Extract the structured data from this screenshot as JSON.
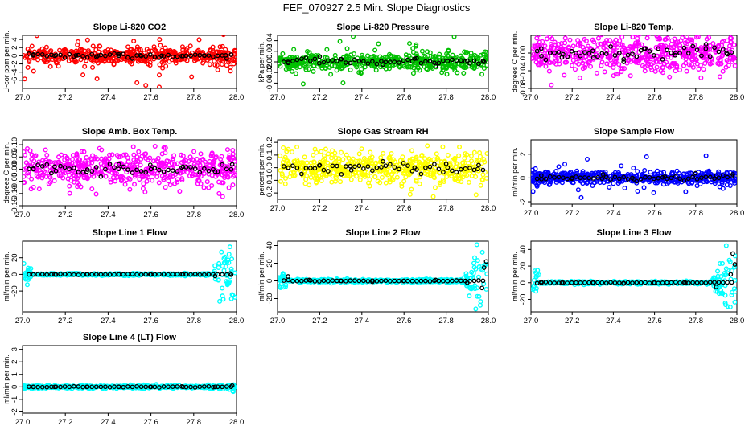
{
  "title": "FEF_070927  2.5 Min. Slope Diagnostics",
  "chart_data": [
    {
      "type": "scatter",
      "title": "Slope Li-820 CO2",
      "ylabel": "Li-cor ppm per min.",
      "xlim": [
        27.0,
        28.0
      ],
      "ylim": [
        -8,
        5
      ],
      "yticks": [
        -6,
        -4,
        -2,
        0,
        2,
        4
      ],
      "xticks": [
        27.0,
        27.2,
        27.4,
        27.6,
        27.8,
        28.0
      ],
      "color": "#ff0000",
      "noise": 1.0,
      "out": 7,
      "edge": 0,
      "seed": 11,
      "summary_points": [
        [
          27.05,
          0.1
        ],
        [
          27.15,
          0.0
        ],
        [
          27.25,
          0.1
        ],
        [
          27.35,
          -0.1
        ],
        [
          27.45,
          0.0
        ],
        [
          27.55,
          0.1
        ],
        [
          27.65,
          0.0
        ],
        [
          27.75,
          -0.1
        ],
        [
          27.85,
          0.0
        ],
        [
          27.95,
          0.1
        ]
      ]
    },
    {
      "type": "scatter",
      "title": "Slope Li-820 Pressure",
      "ylabel": "kPa per min.",
      "xlim": [
        27.0,
        28.0
      ],
      "ylim": [
        -0.05,
        0.05
      ],
      "yticks": [
        -0.04,
        -0.02,
        0.0,
        0.02,
        0.04
      ],
      "xticks": [
        27.0,
        27.2,
        27.4,
        27.6,
        27.8,
        28.0
      ],
      "color": "#00c000",
      "noise": 0.008,
      "out": 0.04,
      "edge": 0,
      "seed": 23,
      "summary_points": [
        [
          27.05,
          0.0
        ],
        [
          27.2,
          0.01
        ],
        [
          27.3,
          0.005
        ],
        [
          27.5,
          -0.005
        ],
        [
          27.65,
          0.006
        ],
        [
          27.75,
          -0.008
        ],
        [
          27.9,
          0.002
        ],
        [
          27.98,
          0.0
        ]
      ]
    },
    {
      "type": "scatter",
      "title": "Slope Li-820 Temp.",
      "ylabel": "degrees C per min.",
      "xlim": [
        27.0,
        28.0
      ],
      "ylim": [
        -0.08,
        0.04
      ],
      "yticks": [
        -0.08,
        -0.04,
        0.0
      ],
      "xticks": [
        27.0,
        27.2,
        27.4,
        27.6,
        27.8,
        28.0
      ],
      "color": "#ff00ff",
      "noise": 0.02,
      "out": 0.05,
      "edge": 0,
      "seed": 37,
      "summary_points": [
        [
          27.05,
          0.01
        ],
        [
          27.15,
          -0.01
        ],
        [
          27.3,
          0.005
        ],
        [
          27.45,
          -0.02
        ],
        [
          27.55,
          0.01
        ],
        [
          27.7,
          -0.005
        ],
        [
          27.85,
          0.02
        ],
        [
          27.95,
          0.0
        ]
      ]
    },
    {
      "type": "scatter",
      "title": "Slope Amb. Box Temp.",
      "ylabel": "degrees C per min.",
      "xlim": [
        27.0,
        28.0
      ],
      "ylim": [
        -0.15,
        0.12
      ],
      "yticks": [
        -0.15,
        -0.1,
        -0.05,
        0.0,
        0.05,
        0.1
      ],
      "xticks": [
        27.0,
        27.2,
        27.4,
        27.6,
        27.8,
        28.0
      ],
      "color": "#ff00ff",
      "noise": 0.035,
      "out": 0.12,
      "edge": 0,
      "seed": 41,
      "summary_points": [
        [
          27.05,
          0.0
        ],
        [
          27.15,
          0.01
        ],
        [
          27.3,
          -0.01
        ],
        [
          27.45,
          0.02
        ],
        [
          27.6,
          0.0
        ],
        [
          27.75,
          0.01
        ],
        [
          27.9,
          -0.01
        ],
        [
          27.98,
          0.02
        ]
      ]
    },
    {
      "type": "scatter",
      "title": "Slope Gas Stream RH",
      "ylabel": "percent per min.",
      "xlim": [
        27.0,
        28.0
      ],
      "ylim": [
        -0.25,
        0.22
      ],
      "yticks": [
        -0.2,
        -0.1,
        0.0,
        0.1,
        0.2
      ],
      "xticks": [
        27.0,
        27.2,
        27.4,
        27.6,
        27.8,
        28.0
      ],
      "color": "#ffff00",
      "noise": 0.06,
      "out": 0.2,
      "edge": 0,
      "seed": 53,
      "summary_points": [
        [
          27.05,
          0.0
        ],
        [
          27.2,
          0.02
        ],
        [
          27.35,
          -0.02
        ],
        [
          27.5,
          0.05
        ],
        [
          27.65,
          0.0
        ],
        [
          27.8,
          0.03
        ],
        [
          27.95,
          -0.01
        ]
      ]
    },
    {
      "type": "scatter",
      "title": "Slope Sample Flow",
      "ylabel": "ml/min per min.",
      "xlim": [
        27.0,
        28.0
      ],
      "ylim": [
        -2.2,
        3.2
      ],
      "yticks": [
        -2,
        0,
        2
      ],
      "xticks": [
        27.0,
        27.2,
        27.4,
        27.6,
        27.8,
        28.0
      ],
      "color": "#0000ff",
      "noise": 0.25,
      "out": 1.8,
      "edge": 0,
      "seed": 67,
      "summary_points": [
        [
          27.05,
          0.2
        ],
        [
          27.2,
          0.0
        ],
        [
          27.35,
          0.3
        ],
        [
          27.5,
          -0.1
        ],
        [
          27.65,
          0.1
        ],
        [
          27.8,
          0.4
        ],
        [
          27.9,
          0.2
        ],
        [
          27.98,
          0.3
        ]
      ]
    },
    {
      "type": "scatter",
      "title": "Slope Line 1 Flow",
      "ylabel": "ml/min per min.",
      "xlim": [
        27.0,
        28.0
      ],
      "ylim": [
        -45,
        40
      ],
      "yticks": [
        -20,
        0,
        20
      ],
      "xticks": [
        27.0,
        27.2,
        27.4,
        27.6,
        27.8,
        28.0
      ],
      "color": "#00ffff",
      "noise": 0.6,
      "out": 0,
      "edge": 30,
      "seed": 71,
      "summary_points": [
        [
          27.05,
          0
        ],
        [
          27.15,
          0
        ],
        [
          27.3,
          0
        ],
        [
          27.45,
          0
        ],
        [
          27.6,
          0
        ],
        [
          27.75,
          0
        ],
        [
          27.9,
          -2
        ],
        [
          27.97,
          1
        ]
      ]
    },
    {
      "type": "scatter",
      "title": "Slope Line 2 Flow",
      "ylabel": "ml/min per min.",
      "xlim": [
        27.0,
        28.0
      ],
      "ylim": [
        -35,
        45
      ],
      "yticks": [
        -20,
        0,
        20,
        40
      ],
      "xticks": [
        27.0,
        27.2,
        27.4,
        27.6,
        27.8,
        28.0
      ],
      "color": "#00ffff",
      "noise": 0.8,
      "out": 0,
      "edge": 30,
      "seed": 83,
      "summary_points": [
        [
          27.05,
          5
        ],
        [
          27.15,
          1
        ],
        [
          27.3,
          0
        ],
        [
          27.45,
          -1
        ],
        [
          27.6,
          0
        ],
        [
          27.75,
          1
        ],
        [
          27.9,
          -2
        ],
        [
          27.98,
          15
        ],
        [
          27.99,
          22
        ],
        [
          27.97,
          -8
        ]
      ]
    },
    {
      "type": "scatter",
      "title": "Slope Line 3 Flow",
      "ylabel": "ml/min per min.",
      "xlim": [
        27.0,
        28.0
      ],
      "ylim": [
        -35,
        50
      ],
      "yticks": [
        -20,
        0,
        20,
        40
      ],
      "xticks": [
        27.0,
        27.2,
        27.4,
        27.6,
        27.8,
        28.0
      ],
      "color": "#00ffff",
      "noise": 0.8,
      "out": 0,
      "edge": 40,
      "seed": 97,
      "summary_points": [
        [
          27.05,
          1
        ],
        [
          27.15,
          0
        ],
        [
          27.3,
          0
        ],
        [
          27.45,
          -1
        ],
        [
          27.6,
          0
        ],
        [
          27.75,
          0
        ],
        [
          27.9,
          -5
        ],
        [
          27.98,
          35
        ],
        [
          27.99,
          22
        ],
        [
          27.97,
          10
        ]
      ]
    },
    {
      "type": "scatter",
      "title": "Slope Line 4 (LT) Flow",
      "ylabel": "ml/min per min.",
      "xlim": [
        27.0,
        28.0
      ],
      "ylim": [
        -2.1,
        3.3
      ],
      "yticks": [
        -2,
        -1,
        0,
        1,
        2,
        3
      ],
      "xticks": [
        27.0,
        27.2,
        27.4,
        27.6,
        27.8,
        28.0
      ],
      "color": "#00ffff",
      "noise": 0.06,
      "out": 0,
      "edge": 0.15,
      "seed": 101,
      "summary_points": [
        [
          27.05,
          0.0
        ],
        [
          27.15,
          0.0
        ],
        [
          27.3,
          0.0
        ],
        [
          27.45,
          0.0
        ],
        [
          27.6,
          0.0
        ],
        [
          27.75,
          0.0
        ],
        [
          27.9,
          0.0
        ],
        [
          27.98,
          0.1
        ]
      ]
    }
  ]
}
